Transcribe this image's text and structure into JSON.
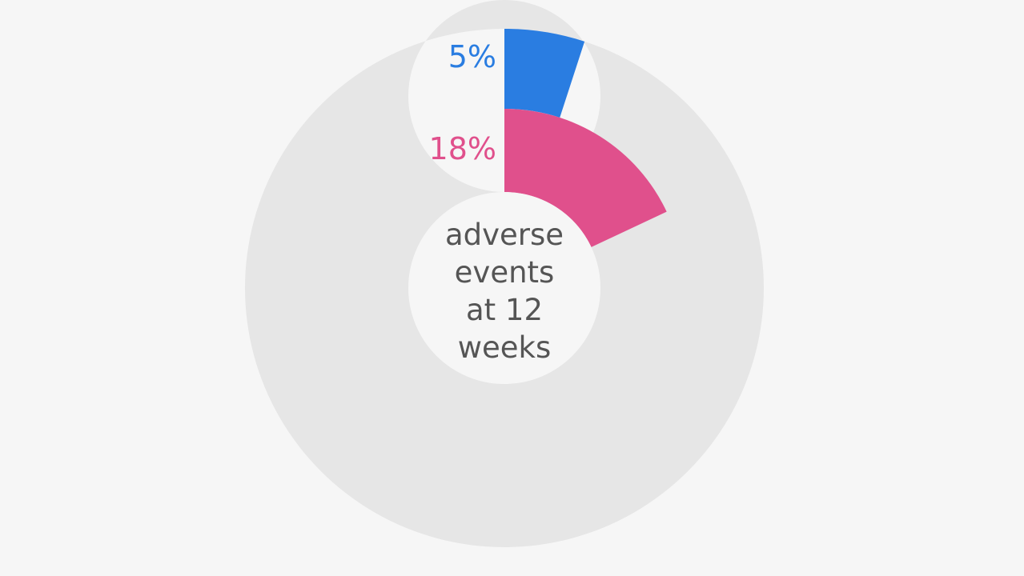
{
  "chart_data": {
    "type": "radial-bar",
    "center_label": [
      "adverse",
      "events",
      "at 12",
      "weeks"
    ],
    "series": [
      {
        "value": 5,
        "label": "5%",
        "color": "#2a7de1"
      },
      {
        "value": 18,
        "label": "18%",
        "color": "#e0508c"
      }
    ],
    "max": 100,
    "track_color": "#e6e6e6",
    "text_color": "#555555"
  }
}
